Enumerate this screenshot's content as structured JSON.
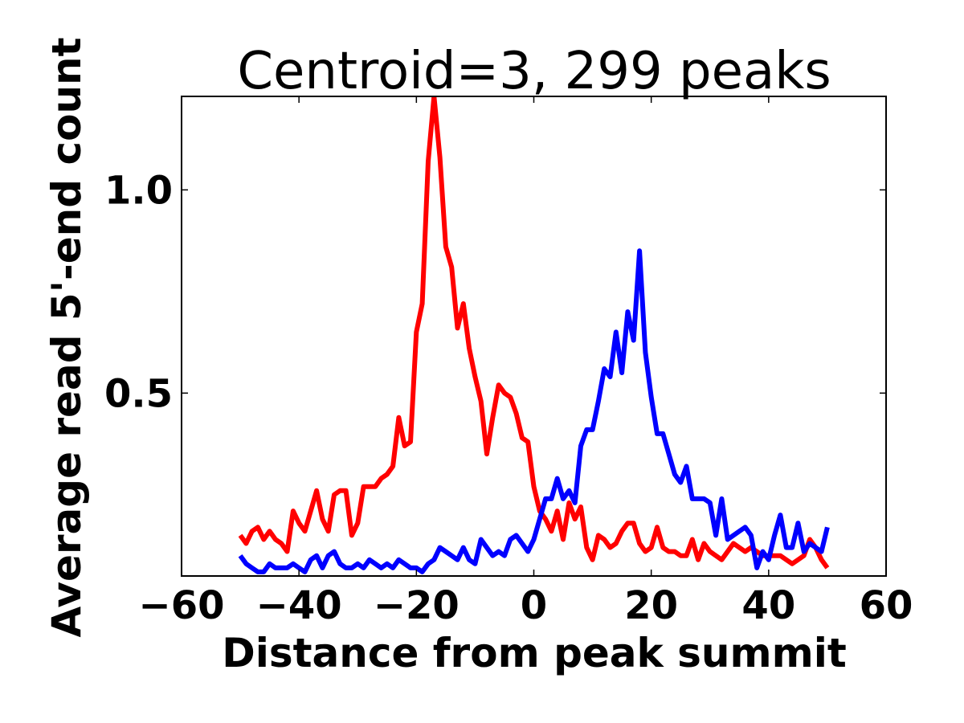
{
  "chart_data": {
    "type": "line",
    "title": "Centroid=3, 299 peaks",
    "xlabel": "Distance from peak summit",
    "ylabel": "Average read 5'-end count",
    "xlim": [
      -60,
      60
    ],
    "ylim": [
      0.05,
      1.23
    ],
    "x_ticks": [
      -60,
      -40,
      -20,
      0,
      20,
      40,
      60
    ],
    "x_tick_labels": [
      "−60",
      "−40",
      "−20",
      "0",
      "20",
      "40",
      "60"
    ],
    "y_ticks": [
      0.5,
      1.0
    ],
    "y_tick_labels": [
      "0.5",
      "1.0"
    ],
    "grid": false,
    "x": [
      -50,
      -49,
      -48,
      -47,
      -46,
      -45,
      -44,
      -43,
      -42,
      -41,
      -40,
      -39,
      -38,
      -37,
      -36,
      -35,
      -34,
      -33,
      -32,
      -31,
      -30,
      -29,
      -28,
      -27,
      -26,
      -25,
      -24,
      -23,
      -22,
      -21,
      -20,
      -19,
      -18,
      -17,
      -16,
      -15,
      -14,
      -13,
      -12,
      -11,
      -10,
      -9,
      -8,
      -7,
      -6,
      -5,
      -4,
      -3,
      -2,
      -1,
      0,
      1,
      2,
      3,
      4,
      5,
      6,
      7,
      8,
      9,
      10,
      11,
      12,
      13,
      14,
      15,
      16,
      17,
      18,
      19,
      20,
      21,
      22,
      23,
      24,
      25,
      26,
      27,
      28,
      29,
      30,
      31,
      32,
      33,
      34,
      35,
      36,
      37,
      38,
      39,
      40,
      41,
      42,
      43,
      44,
      45,
      46,
      47,
      48,
      49,
      50
    ],
    "series": [
      {
        "color": "#ff0000",
        "values": [
          0.15,
          0.13,
          0.16,
          0.17,
          0.14,
          0.16,
          0.14,
          0.13,
          0.11,
          0.21,
          0.18,
          0.16,
          0.21,
          0.26,
          0.19,
          0.16,
          0.25,
          0.26,
          0.26,
          0.15,
          0.18,
          0.27,
          0.27,
          0.27,
          0.29,
          0.3,
          0.32,
          0.44,
          0.37,
          0.38,
          0.65,
          0.72,
          1.07,
          1.23,
          1.08,
          0.86,
          0.81,
          0.66,
          0.72,
          0.61,
          0.54,
          0.48,
          0.35,
          0.44,
          0.52,
          0.5,
          0.49,
          0.45,
          0.39,
          0.38,
          0.27,
          0.21,
          0.19,
          0.16,
          0.21,
          0.14,
          0.23,
          0.19,
          0.22,
          0.12,
          0.09,
          0.15,
          0.14,
          0.12,
          0.13,
          0.16,
          0.18,
          0.18,
          0.13,
          0.11,
          0.12,
          0.17,
          0.12,
          0.11,
          0.11,
          0.1,
          0.1,
          0.14,
          0.09,
          0.13,
          0.11,
          0.1,
          0.09,
          0.11,
          0.13,
          0.12,
          0.11,
          0.12,
          0.11,
          0.1,
          0.1,
          0.1,
          0.1,
          0.09,
          0.08,
          0.09,
          0.1,
          0.14,
          0.12,
          0.09,
          0.07
        ]
      },
      {
        "color": "#0000ff",
        "values": [
          0.1,
          0.08,
          0.07,
          0.06,
          0.06,
          0.08,
          0.07,
          0.07,
          0.07,
          0.08,
          0.07,
          0.06,
          0.09,
          0.1,
          0.07,
          0.1,
          0.11,
          0.08,
          0.07,
          0.07,
          0.08,
          0.07,
          0.09,
          0.08,
          0.07,
          0.08,
          0.07,
          0.09,
          0.08,
          0.07,
          0.07,
          0.06,
          0.08,
          0.09,
          0.12,
          0.11,
          0.1,
          0.09,
          0.12,
          0.09,
          0.08,
          0.14,
          0.12,
          0.1,
          0.11,
          0.1,
          0.14,
          0.15,
          0.13,
          0.11,
          0.14,
          0.19,
          0.24,
          0.24,
          0.29,
          0.24,
          0.26,
          0.23,
          0.37,
          0.41,
          0.41,
          0.48,
          0.56,
          0.54,
          0.65,
          0.55,
          0.7,
          0.63,
          0.85,
          0.6,
          0.49,
          0.4,
          0.4,
          0.35,
          0.3,
          0.28,
          0.32,
          0.24,
          0.24,
          0.24,
          0.23,
          0.15,
          0.24,
          0.14,
          0.15,
          0.16,
          0.17,
          0.15,
          0.07,
          0.11,
          0.09,
          0.15,
          0.2,
          0.12,
          0.12,
          0.18,
          0.11,
          0.13,
          0.12,
          0.11,
          0.17
        ]
      }
    ]
  }
}
